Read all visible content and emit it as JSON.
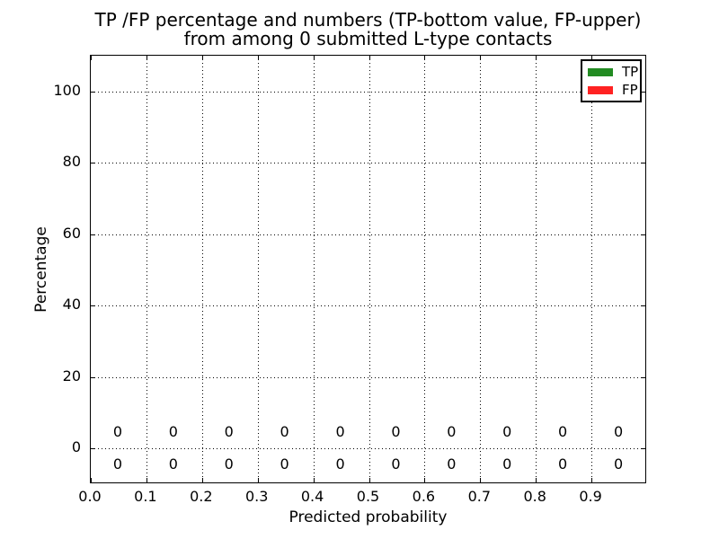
{
  "figure": {
    "title_line1": "TP /FP percentage and numbers (TP-bottom value, FP-upper)",
    "title_line2": "from among 0 submitted L-type contacts",
    "background_color": "#ffffff",
    "text_color": "#000000"
  },
  "chart_data": {
    "type": "bar",
    "title": "TP /FP percentage and numbers (TP-bottom value, FP-upper) from among 0 submitted L-type contacts",
    "xlabel": "Predicted probability",
    "ylabel": "Percentage",
    "xlim": [
      0.0,
      1.0
    ],
    "ylim": [
      -10,
      110
    ],
    "xticks": [
      0.0,
      0.1,
      0.2,
      0.3,
      0.4,
      0.5,
      0.6,
      0.7,
      0.8,
      0.9
    ],
    "xtick_labels": [
      "0.0",
      "0.1",
      "0.2",
      "0.3",
      "0.4",
      "0.5",
      "0.6",
      "0.7",
      "0.8",
      "0.9"
    ],
    "yticks": [
      0,
      20,
      40,
      60,
      80,
      100
    ],
    "ytick_labels": [
      "0",
      "20",
      "40",
      "60",
      "80",
      "100"
    ],
    "grid": "dotted",
    "grid_color": "#000000",
    "bin_centers": [
      0.05,
      0.15,
      0.25,
      0.35,
      0.45,
      0.55,
      0.65,
      0.75,
      0.85,
      0.95
    ],
    "series": [
      {
        "name": "TP",
        "color": "#228b22",
        "values": [
          0,
          0,
          0,
          0,
          0,
          0,
          0,
          0,
          0,
          0
        ]
      },
      {
        "name": "FP",
        "color": "#ff2222",
        "values": [
          0,
          0,
          0,
          0,
          0,
          0,
          0,
          0,
          0,
          0
        ]
      }
    ],
    "annotations": {
      "upper_row": {
        "series": "FP",
        "y_value": 4.3,
        "labels": [
          "0",
          "0",
          "0",
          "0",
          "0",
          "0",
          "0",
          "0",
          "0",
          "0"
        ]
      },
      "lower_row": {
        "series": "TP",
        "y_value": -4.6,
        "labels": [
          "0",
          "0",
          "0",
          "0",
          "0",
          "0",
          "0",
          "0",
          "0",
          "0"
        ]
      }
    },
    "legend": {
      "position": "upper right",
      "items": [
        {
          "label": "TP",
          "color": "#228b22"
        },
        {
          "label": "FP",
          "color": "#ff2222"
        }
      ]
    }
  }
}
